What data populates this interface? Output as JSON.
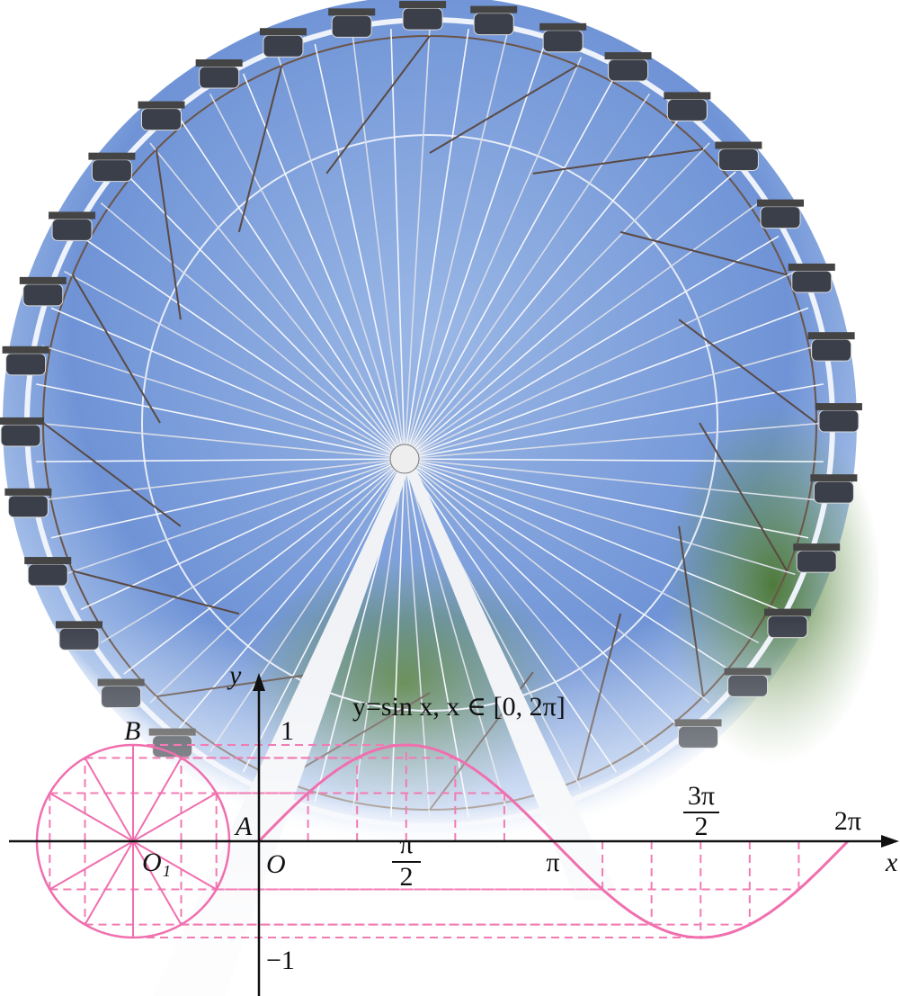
{
  "graph": {
    "equation": "y=sin x, x ∈ [0, 2π]",
    "axis_x": "x",
    "axis_y": "y",
    "y_labels": [
      "1",
      "−1"
    ],
    "origin": "O",
    "point_a": "A",
    "point_b": "B",
    "circle_center": "O₁",
    "x_labels": [
      {
        "numerator": "π",
        "denominator": "2"
      },
      {
        "text": "π"
      },
      {
        "numerator": "3π",
        "denominator": "2"
      },
      {
        "text": "2π"
      }
    ]
  }
}
